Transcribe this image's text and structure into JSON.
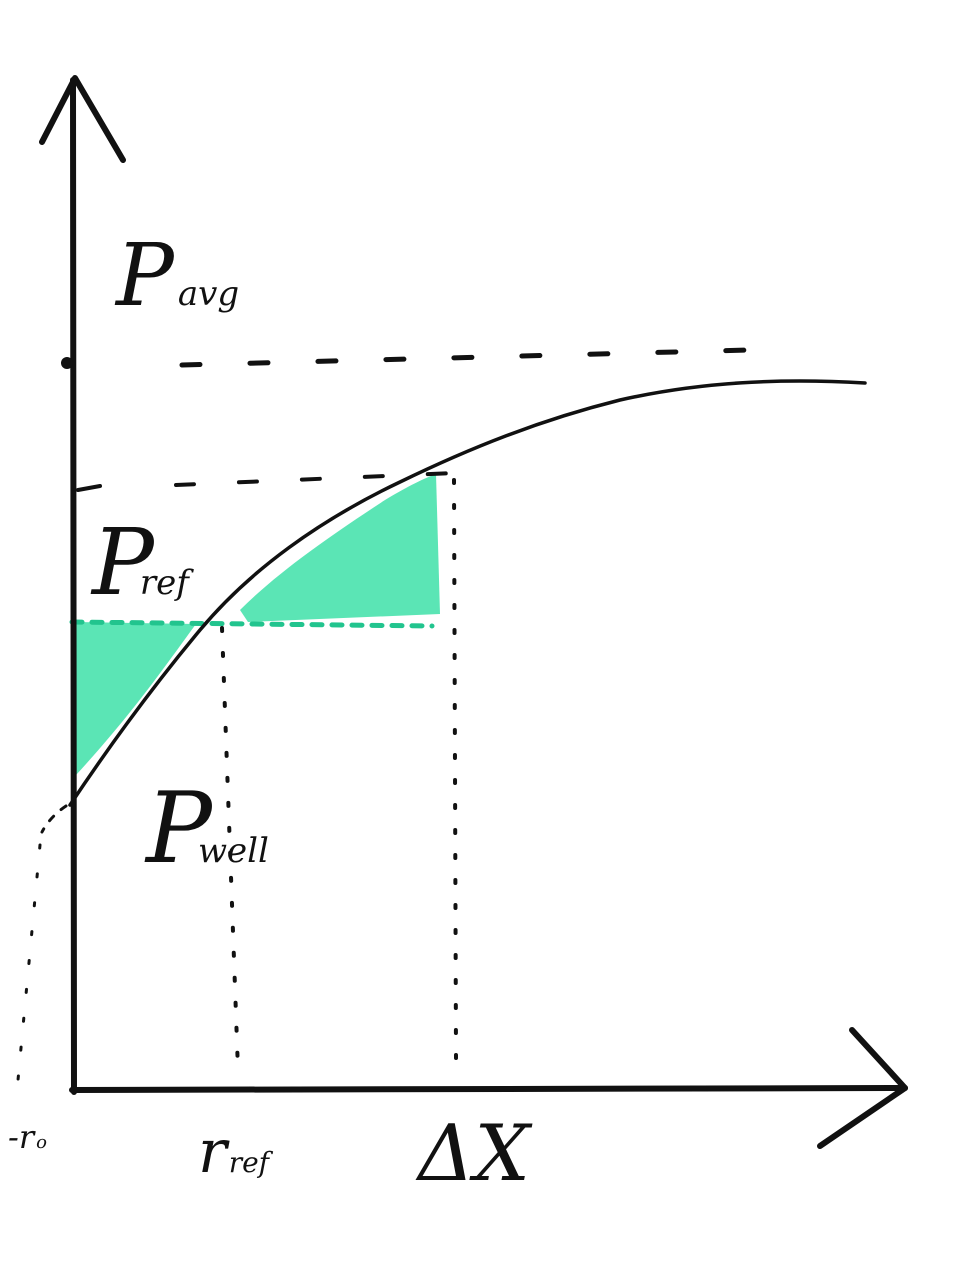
{
  "diagram": {
    "labels": {
      "p_avg_main": "P",
      "p_avg_sub": "avg",
      "p_ref_main": "P",
      "p_ref_sub": "ref",
      "p_well_main": "P",
      "p_well_sub": "well",
      "x_origin_main": "-r",
      "x_origin_sub": "o",
      "x_ref_main": "r",
      "x_ref_sub": "ref",
      "x_delta": "ΔX"
    },
    "colors": {
      "ink": "#111111",
      "highlight": "#3ee0a8",
      "highlight_dots": "#22c48e"
    }
  }
}
